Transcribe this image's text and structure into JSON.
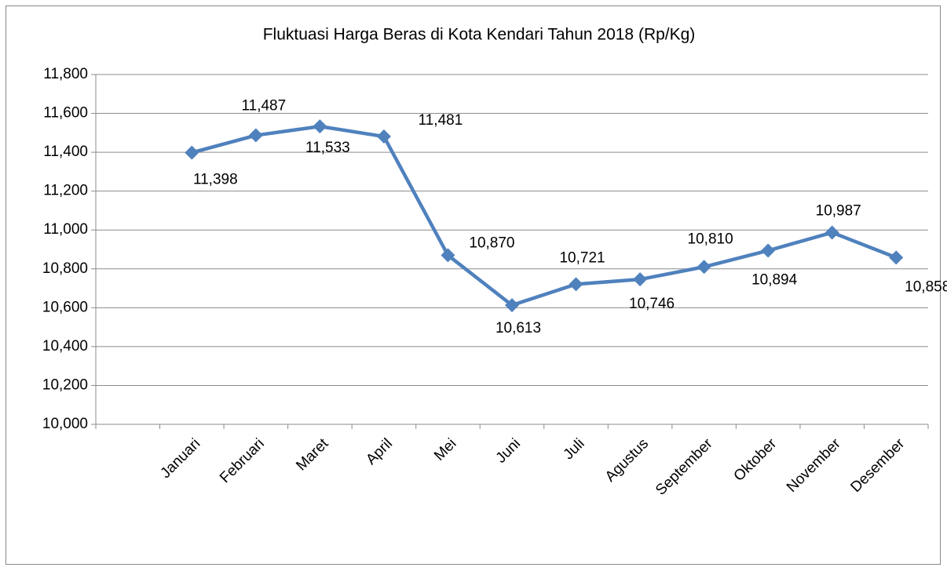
{
  "chart_data": {
    "type": "line",
    "title": "Fluktuasi Harga Beras di Kota Kendari Tahun 2018 (Rp/Kg)",
    "categories": [
      null,
      "Januari",
      "Februari",
      "Maret",
      "April",
      "Mei",
      "Juni",
      "Juli",
      "Agustus",
      "September",
      "Oktober",
      "November",
      "Desember"
    ],
    "values": [
      null,
      11398,
      11487,
      11533,
      11481,
      10870,
      10613,
      10721,
      10746,
      10810,
      10894,
      10987,
      10858
    ],
    "value_labels": [
      null,
      "11,398",
      "11,487",
      "11,533",
      "11,481",
      "10,870",
      "10,613",
      "10,721",
      "10,746",
      "10,810",
      "10,894",
      "10,987",
      "10,858"
    ],
    "color": "#4f81bd",
    "ylim": [
      10000,
      11800
    ],
    "yticks": [
      {
        "value": 10000,
        "label": "10,000"
      },
      {
        "value": 10200,
        "label": "10,200"
      },
      {
        "value": 10400,
        "label": "10,400"
      },
      {
        "value": 10600,
        "label": "10,600"
      },
      {
        "value": 10800,
        "label": "10,800"
      },
      {
        "value": 11000,
        "label": "11,000"
      },
      {
        "value": 11200,
        "label": "11,200"
      },
      {
        "value": 11400,
        "label": "11,400"
      },
      {
        "value": 11600,
        "label": "11,600"
      },
      {
        "value": 11800,
        "label": "11,800"
      }
    ],
    "grid": true
  }
}
